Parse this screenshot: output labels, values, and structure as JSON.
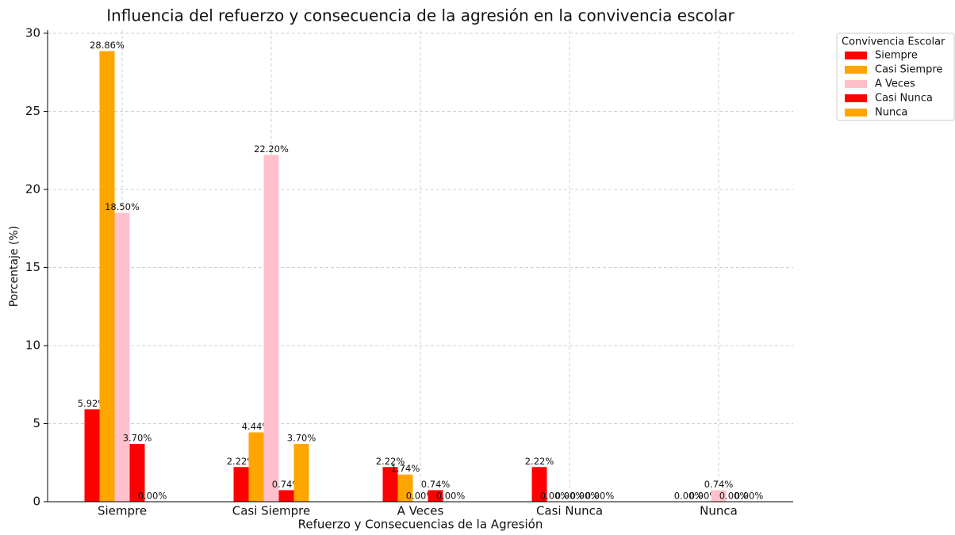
{
  "chart_data": {
    "type": "bar",
    "title": "Influencia del refuerzo y consecuencia de la agresión en la convivencia escolar",
    "x_label": "Refuerzo y Consecuencias de la Agresión",
    "y_label": "Porcentaje (%)",
    "legend_title": "Convivencia Escolar",
    "legend": "upper right",
    "grid": true,
    "categories": [
      "Siempre",
      "Casi Siempre",
      "A Veces",
      "Casi Nunca",
      "Nunca"
    ],
    "ylim": [
      0,
      30.2
    ],
    "yticks": [
      0,
      5,
      10,
      15,
      20,
      25,
      30
    ],
    "series": [
      {
        "name": "Siempre",
        "color": "#ff0000",
        "values": [
          5.92,
          2.22,
          2.22,
          2.22,
          0.0
        ],
        "value_labels": [
          "5.92%",
          "2.22%",
          "2.22%",
          "2.22%",
          "0.00%"
        ]
      },
      {
        "name": "Casi Siempre",
        "color": "#ffa500",
        "values": [
          28.86,
          4.44,
          1.74,
          0.0,
          0.0
        ],
        "value_labels": [
          "28.86%",
          "4.44%",
          "1.74%",
          "0.00%",
          "0.00%"
        ]
      },
      {
        "name": "A Veces",
        "color": "#ffc0cb",
        "values": [
          18.5,
          22.2,
          0.0,
          0.0,
          0.74
        ],
        "value_labels": [
          "18.50%",
          "22.20%",
          "0.00%",
          "0.00%",
          "0.74%"
        ]
      },
      {
        "name": "Casi Nunca",
        "color": "#ff0000",
        "values": [
          3.7,
          0.74,
          0.74,
          0.0,
          0.0
        ],
        "value_labels": [
          "3.70%",
          "0.74%",
          "0.74%",
          "0.00%",
          "0.00%"
        ]
      },
      {
        "name": "Nunca",
        "color": "#ffa500",
        "values": [
          0.0,
          3.7,
          0.0,
          0.0,
          0.0
        ],
        "value_labels": [
          "0.00%",
          "3.70%",
          "0.00%",
          "0.00%",
          "0.00%"
        ]
      }
    ]
  }
}
